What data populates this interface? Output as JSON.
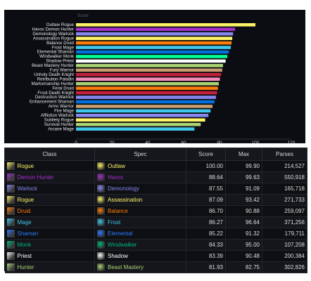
{
  "chart_data": {
    "type": "bar",
    "orientation": "horizontal",
    "title": "Score",
    "categories": [
      "Outlaw Rogue",
      "Havoc Demon Hunter",
      "Demonology Warlock",
      "Assassination Rogue",
      "Balance Druid",
      "Frost Mage",
      "Elemental Shaman",
      "Windwalker Monk",
      "Shadow Priest",
      "Beast Mastery Hunter",
      "Fury Warrior",
      "Unholy Death Knight",
      "Retribution Paladin",
      "Marksmanship Hunter",
      "Feral Druid",
      "Frost Death Knight",
      "Destruction Warlock",
      "Enhancement Shaman",
      "Arms Warrior",
      "Fire Mage",
      "Affliction Warlock",
      "Subtlety Rogue",
      "Survival Hunter",
      "Arcane Mage"
    ],
    "values": [
      100,
      88.64,
      87.55,
      87.09,
      86.7,
      86.27,
      85.22,
      84.33,
      83.39,
      81.93,
      81.5,
      80.9,
      80.2,
      79.6,
      79.1,
      78.6,
      78.0,
      77.2,
      76.1,
      75.0,
      73.8,
      72.0,
      69.5,
      66.0
    ],
    "colors": [
      "#fff569",
      "#a330c9",
      "#8788ee",
      "#fff569",
      "#ff7d0a",
      "#3fc7eb",
      "#0070de",
      "#00ff96",
      "#ffffff",
      "#abd473",
      "#c79c6e",
      "#c41f3b",
      "#f58cba",
      "#abd473",
      "#ff7d0a",
      "#c41f3b",
      "#8788ee",
      "#0070de",
      "#c79c6e",
      "#3fc7eb",
      "#8788ee",
      "#fff569",
      "#abd473",
      "#3fc7eb"
    ],
    "xticks": [
      "0",
      "20",
      "40",
      "60",
      "80",
      "100",
      "120"
    ],
    "xlim": [
      0,
      120
    ],
    "xlabel": "",
    "ylabel": "",
    "grid": false
  },
  "table": {
    "headers": {
      "class": "Class",
      "spec": "Spec",
      "score": "Score",
      "max": "Max",
      "parses": "Parses"
    },
    "rows": [
      {
        "class": "Rogue",
        "spec": "Outlaw",
        "score": "100.00",
        "max": "99.90",
        "parses": "214,527",
        "color": "#fff569",
        "spec_color": "#fff569",
        "class_icon": "daggers-icon",
        "spec_icon": "outlaw-spec-icon"
      },
      {
        "class": "Demon Hunter",
        "spec": "Havoc",
        "score": "88.64",
        "max": "99.63",
        "parses": "550,918",
        "color": "#a330c9",
        "spec_color": "#a330c9",
        "class_icon": "demon-hunter-icon",
        "spec_icon": "havoc-spec-icon"
      },
      {
        "class": "Warlock",
        "spec": "Demonology",
        "score": "87.55",
        "max": "91.09",
        "parses": "165,718",
        "color": "#8788ee",
        "spec_color": "#8788ee",
        "class_icon": "warlock-icon",
        "spec_icon": "demonology-spec-icon"
      },
      {
        "class": "Rogue",
        "spec": "Assassination",
        "score": "87.09",
        "max": "93.42",
        "parses": "271,733",
        "color": "#fff569",
        "spec_color": "#fff569",
        "class_icon": "daggers-icon",
        "spec_icon": "assassination-spec-icon"
      },
      {
        "class": "Druid",
        "spec": "Balance",
        "score": "86.70",
        "max": "90.88",
        "parses": "259,097",
        "color": "#ff7d0a",
        "spec_color": "#ff7d0a",
        "class_icon": "druid-icon",
        "spec_icon": "balance-spec-icon"
      },
      {
        "class": "Mage",
        "spec": "Frost",
        "score": "86.27",
        "max": "96.64",
        "parses": "371,256",
        "color": "#3fc7eb",
        "spec_color": "#3fc7eb",
        "class_icon": "mage-icon",
        "spec_icon": "frost-spec-icon"
      },
      {
        "class": "Shaman",
        "spec": "Elemental",
        "score": "85.22",
        "max": "91.32",
        "parses": "179,711",
        "color": "#2e79ff",
        "spec_color": "#2e79ff",
        "class_icon": "shaman-icon",
        "spec_icon": "elemental-spec-icon"
      },
      {
        "class": "Monk",
        "spec": "Windwalker",
        "score": "84.33",
        "max": "95.00",
        "parses": "107,208",
        "color": "#00b877",
        "spec_color": "#00b877",
        "class_icon": "monk-icon",
        "spec_icon": "windwalker-spec-icon"
      },
      {
        "class": "Priest",
        "spec": "Shadow",
        "score": "83.39",
        "max": "90.48",
        "parses": "200,384",
        "color": "#ffffff",
        "spec_color": "#ffffff",
        "class_icon": "priest-icon",
        "spec_icon": "shadow-spec-icon"
      },
      {
        "class": "Hunter",
        "spec": "Beast Mastery",
        "score": "81.93",
        "max": "82.75",
        "parses": "302,826",
        "color": "#abd473",
        "spec_color": "#abd473",
        "class_icon": "hunter-icon",
        "spec_icon": "beast-mastery-spec-icon"
      }
    ]
  }
}
